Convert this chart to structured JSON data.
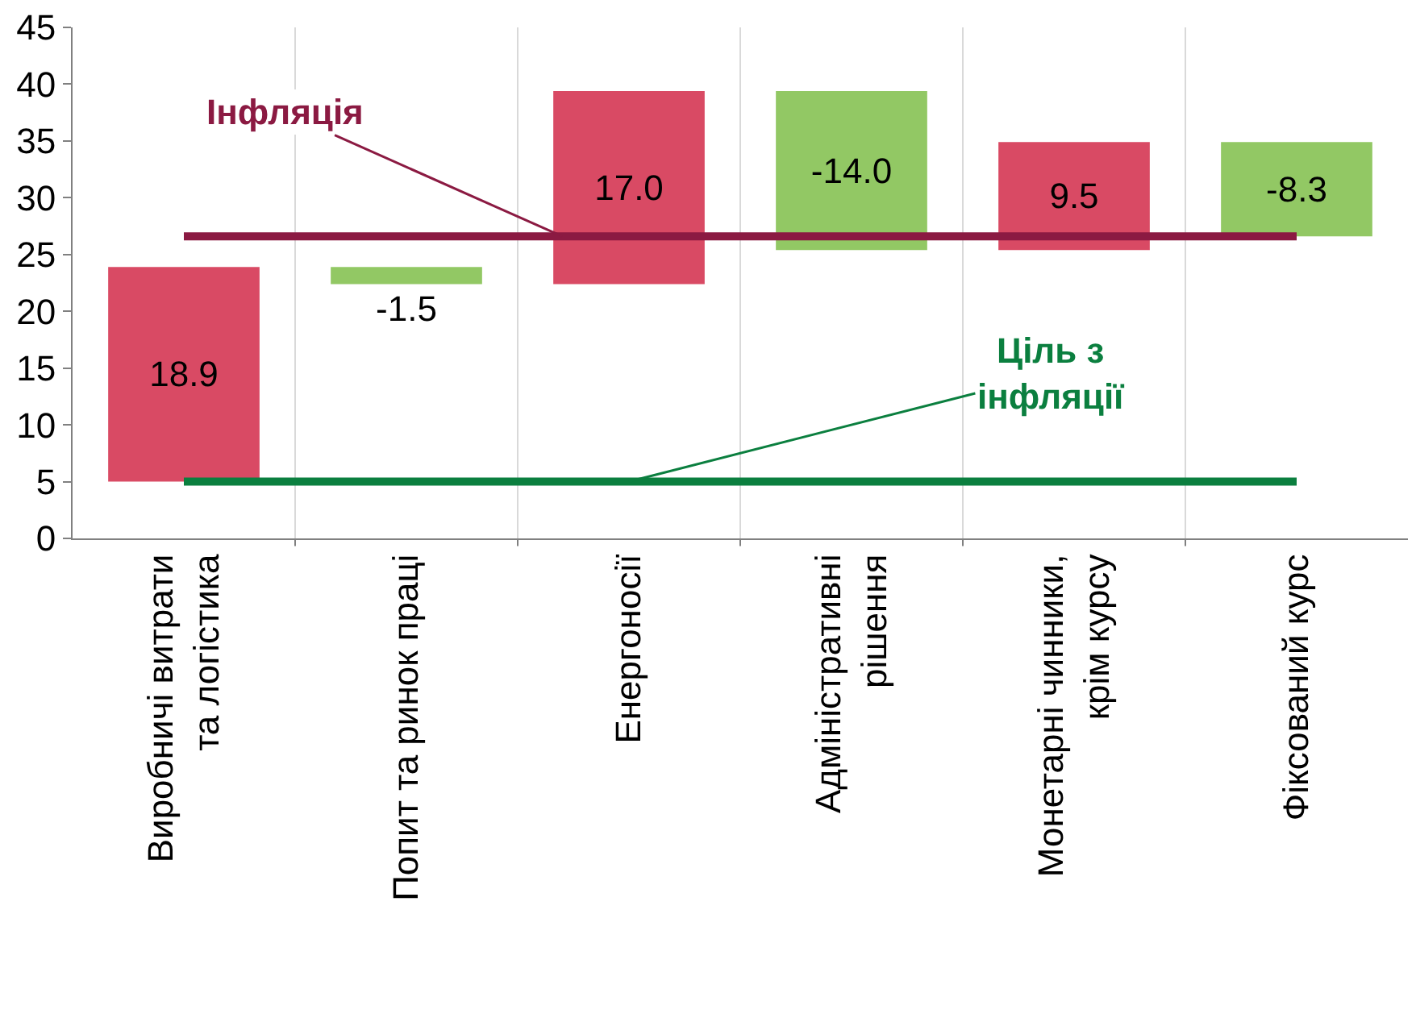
{
  "chart_data": {
    "type": "bar",
    "categories": [
      "Виробничі витрати\nта логістика",
      "Попит та ринок праці",
      "Енергоносії",
      "Адміністративні\nрішення",
      "Монетарні чинники,\nкрім курсу",
      "Фіксований курс"
    ],
    "values": [
      18.9,
      -1.5,
      17.0,
      -14.0,
      9.5,
      -8.3
    ],
    "base": [
      5,
      23.9,
      22.4,
      39.4,
      25.4,
      34.9
    ],
    "colors": [
      "#d94a64",
      "#92c864",
      "#d94a64",
      "#92c864",
      "#d94a64",
      "#92c864"
    ],
    "value_labels": [
      "18.9",
      "-1.5",
      "17.0",
      "-14.0",
      "9.5",
      "-8.3"
    ],
    "ylim": [
      0,
      45
    ],
    "yticks": [
      0,
      5,
      10,
      15,
      20,
      25,
      30,
      35,
      40,
      45
    ],
    "grid": "x",
    "ref_lines": [
      {
        "axis": "y",
        "value": 26.6,
        "label": "Інфляція",
        "color": "#8b1a42"
      },
      {
        "axis": "y",
        "value": 5,
        "label": "Ціль з\nінфляції",
        "color": "#0b7f3f"
      }
    ]
  }
}
